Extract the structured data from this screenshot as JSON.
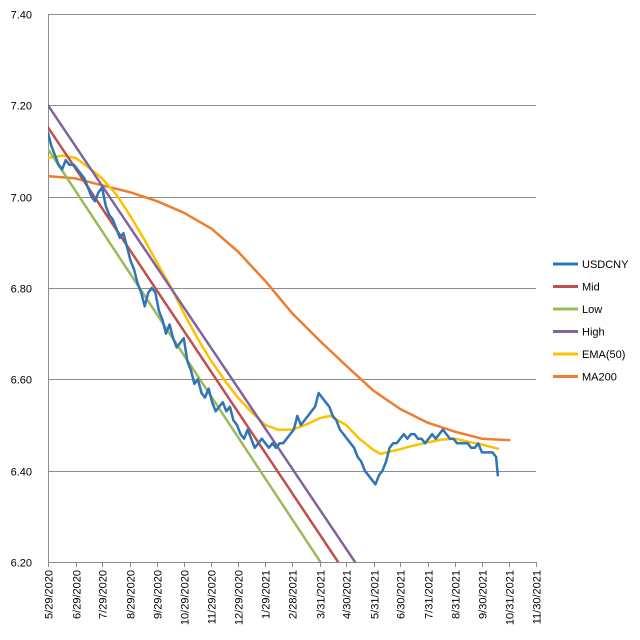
{
  "chart_data": {
    "type": "line",
    "title": "",
    "xlabel": "",
    "ylabel": "",
    "xlim": [
      "2020-05-29",
      "2021-11-30"
    ],
    "ylim": [
      6.2,
      7.4
    ],
    "grid": "horizontal",
    "legend_position": "right",
    "yticks": [
      {
        "value": 6.2,
        "label": "6.20"
      },
      {
        "value": 6.4,
        "label": "6.40"
      },
      {
        "value": 6.6,
        "label": "6.60"
      },
      {
        "value": 6.8,
        "label": "6.80"
      },
      {
        "value": 7.0,
        "label": "7.00"
      },
      {
        "value": 7.2,
        "label": "7.20"
      },
      {
        "value": 7.4,
        "label": "7.40"
      }
    ],
    "xticks": [
      {
        "date": "2020-05-29",
        "label": "5/29/2020"
      },
      {
        "date": "2020-06-29",
        "label": "6/29/2020"
      },
      {
        "date": "2020-07-29",
        "label": "7/29/2020"
      },
      {
        "date": "2020-08-29",
        "label": "8/29/2020"
      },
      {
        "date": "2020-09-29",
        "label": "9/29/2020"
      },
      {
        "date": "2020-10-29",
        "label": "10/29/2020"
      },
      {
        "date": "2020-11-29",
        "label": "11/29/2020"
      },
      {
        "date": "2020-12-29",
        "label": "12/29/2020"
      },
      {
        "date": "2021-01-29",
        "label": "1/29/2021"
      },
      {
        "date": "2021-02-28",
        "label": "2/28/2021"
      },
      {
        "date": "2021-03-31",
        "label": "3/31/2021"
      },
      {
        "date": "2021-04-30",
        "label": "4/30/2021"
      },
      {
        "date": "2021-05-31",
        "label": "5/31/2021"
      },
      {
        "date": "2021-06-30",
        "label": "6/30/2021"
      },
      {
        "date": "2021-07-31",
        "label": "7/31/2021"
      },
      {
        "date": "2021-08-31",
        "label": "8/31/2021"
      },
      {
        "date": "2021-09-30",
        "label": "9/30/2021"
      },
      {
        "date": "2021-10-31",
        "label": "10/31/2021"
      },
      {
        "date": "2021-11-30",
        "label": "11/30/2021"
      }
    ],
    "series": [
      {
        "name": "USDCNY",
        "color": "#2E75B6",
        "width": 2.5,
        "points": [
          [
            "2020-05-29",
            7.14
          ],
          [
            "2020-06-02",
            7.11
          ],
          [
            "2020-06-06",
            7.09
          ],
          [
            "2020-06-10",
            7.07
          ],
          [
            "2020-06-14",
            7.06
          ],
          [
            "2020-06-18",
            7.08
          ],
          [
            "2020-06-22",
            7.07
          ],
          [
            "2020-06-27",
            7.07
          ],
          [
            "2020-07-01",
            7.06
          ],
          [
            "2020-07-05",
            7.05
          ],
          [
            "2020-07-09",
            7.04
          ],
          [
            "2020-07-13",
            7.02
          ],
          [
            "2020-07-17",
            7.0
          ],
          [
            "2020-07-21",
            6.99
          ],
          [
            "2020-07-25",
            7.01
          ],
          [
            "2020-07-29",
            7.02
          ],
          [
            "2020-08-02",
            6.98
          ],
          [
            "2020-08-06",
            6.96
          ],
          [
            "2020-08-10",
            6.95
          ],
          [
            "2020-08-14",
            6.93
          ],
          [
            "2020-08-18",
            6.91
          ],
          [
            "2020-08-22",
            6.92
          ],
          [
            "2020-08-26",
            6.89
          ],
          [
            "2020-08-30",
            6.86
          ],
          [
            "2020-09-03",
            6.84
          ],
          [
            "2020-09-07",
            6.81
          ],
          [
            "2020-09-11",
            6.79
          ],
          [
            "2020-09-15",
            6.76
          ],
          [
            "2020-09-19",
            6.79
          ],
          [
            "2020-09-23",
            6.8
          ],
          [
            "2020-09-27",
            6.79
          ],
          [
            "2020-10-01",
            6.75
          ],
          [
            "2020-10-05",
            6.73
          ],
          [
            "2020-10-09",
            6.7
          ],
          [
            "2020-10-13",
            6.72
          ],
          [
            "2020-10-17",
            6.69
          ],
          [
            "2020-10-21",
            6.67
          ],
          [
            "2020-10-25",
            6.68
          ],
          [
            "2020-10-29",
            6.69
          ],
          [
            "2020-11-02",
            6.64
          ],
          [
            "2020-11-06",
            6.62
          ],
          [
            "2020-11-10",
            6.59
          ],
          [
            "2020-11-14",
            6.6
          ],
          [
            "2020-11-18",
            6.57
          ],
          [
            "2020-11-22",
            6.56
          ],
          [
            "2020-11-26",
            6.58
          ],
          [
            "2020-11-30",
            6.55
          ],
          [
            "2020-12-04",
            6.53
          ],
          [
            "2020-12-08",
            6.54
          ],
          [
            "2020-12-12",
            6.55
          ],
          [
            "2020-12-16",
            6.53
          ],
          [
            "2020-12-20",
            6.54
          ],
          [
            "2020-12-24",
            6.51
          ],
          [
            "2020-12-28",
            6.5
          ],
          [
            "2021-01-01",
            6.48
          ],
          [
            "2021-01-05",
            6.47
          ],
          [
            "2021-01-09",
            6.49
          ],
          [
            "2021-01-13",
            6.47
          ],
          [
            "2021-01-17",
            6.45
          ],
          [
            "2021-01-21",
            6.46
          ],
          [
            "2021-01-25",
            6.47
          ],
          [
            "2021-01-29",
            6.46
          ],
          [
            "2021-02-02",
            6.45
          ],
          [
            "2021-02-06",
            6.46
          ],
          [
            "2021-02-10",
            6.45
          ],
          [
            "2021-02-14",
            6.46
          ],
          [
            "2021-02-18",
            6.46
          ],
          [
            "2021-02-22",
            6.47
          ],
          [
            "2021-02-26",
            6.48
          ],
          [
            "2021-03-02",
            6.49
          ],
          [
            "2021-03-06",
            6.52
          ],
          [
            "2021-03-10",
            6.5
          ],
          [
            "2021-03-14",
            6.51
          ],
          [
            "2021-03-18",
            6.52
          ],
          [
            "2021-03-22",
            6.53
          ],
          [
            "2021-03-26",
            6.54
          ],
          [
            "2021-03-30",
            6.57
          ],
          [
            "2021-04-03",
            6.56
          ],
          [
            "2021-04-07",
            6.55
          ],
          [
            "2021-04-11",
            6.54
          ],
          [
            "2021-04-15",
            6.52
          ],
          [
            "2021-04-19",
            6.51
          ],
          [
            "2021-04-23",
            6.49
          ],
          [
            "2021-04-27",
            6.48
          ],
          [
            "2021-05-01",
            6.47
          ],
          [
            "2021-05-05",
            6.46
          ],
          [
            "2021-05-09",
            6.45
          ],
          [
            "2021-05-13",
            6.43
          ],
          [
            "2021-05-17",
            6.42
          ],
          [
            "2021-05-21",
            6.4
          ],
          [
            "2021-05-25",
            6.39
          ],
          [
            "2021-05-29",
            6.38
          ],
          [
            "2021-06-02",
            6.37
          ],
          [
            "2021-06-06",
            6.39
          ],
          [
            "2021-06-10",
            6.4
          ],
          [
            "2021-06-14",
            6.42
          ],
          [
            "2021-06-18",
            6.45
          ],
          [
            "2021-06-22",
            6.46
          ],
          [
            "2021-06-26",
            6.46
          ],
          [
            "2021-06-30",
            6.47
          ],
          [
            "2021-07-04",
            6.48
          ],
          [
            "2021-07-08",
            6.47
          ],
          [
            "2021-07-12",
            6.48
          ],
          [
            "2021-07-16",
            6.48
          ],
          [
            "2021-07-20",
            6.47
          ],
          [
            "2021-07-24",
            6.47
          ],
          [
            "2021-07-28",
            6.46
          ],
          [
            "2021-08-01",
            6.47
          ],
          [
            "2021-08-05",
            6.48
          ],
          [
            "2021-08-09",
            6.47
          ],
          [
            "2021-08-13",
            6.48
          ],
          [
            "2021-08-17",
            6.49
          ],
          [
            "2021-08-21",
            6.48
          ],
          [
            "2021-08-25",
            6.47
          ],
          [
            "2021-08-29",
            6.47
          ],
          [
            "2021-09-02",
            6.46
          ],
          [
            "2021-09-06",
            6.46
          ],
          [
            "2021-09-10",
            6.46
          ],
          [
            "2021-09-14",
            6.46
          ],
          [
            "2021-09-18",
            6.45
          ],
          [
            "2021-09-22",
            6.45
          ],
          [
            "2021-09-26",
            6.46
          ],
          [
            "2021-09-30",
            6.44
          ],
          [
            "2021-10-04",
            6.44
          ],
          [
            "2021-10-08",
            6.44
          ],
          [
            "2021-10-12",
            6.44
          ],
          [
            "2021-10-16",
            6.43
          ],
          [
            "2021-10-18",
            6.39
          ]
        ]
      },
      {
        "name": "Mid",
        "color": "#C0504D",
        "width": 2.5,
        "points": [
          [
            "2020-05-29",
            7.152
          ],
          [
            "2021-04-21",
            6.2
          ]
        ]
      },
      {
        "name": "Low",
        "color": "#9BBB59",
        "width": 2.5,
        "points": [
          [
            "2020-05-29",
            7.104
          ],
          [
            "2021-04-01",
            6.2
          ]
        ]
      },
      {
        "name": "High",
        "color": "#8064A2",
        "width": 2.5,
        "points": [
          [
            "2020-05-29",
            7.2
          ],
          [
            "2021-05-10",
            6.2
          ]
        ]
      },
      {
        "name": "EMA(50)",
        "color": "#FFC000",
        "width": 2.5,
        "points": [
          [
            "2020-05-29",
            7.085
          ],
          [
            "2020-06-15",
            7.09
          ],
          [
            "2020-06-29",
            7.085
          ],
          [
            "2020-07-13",
            7.065
          ],
          [
            "2020-07-29",
            7.04
          ],
          [
            "2020-08-14",
            7.005
          ],
          [
            "2020-08-29",
            6.96
          ],
          [
            "2020-09-15",
            6.905
          ],
          [
            "2020-09-29",
            6.855
          ],
          [
            "2020-10-15",
            6.8
          ],
          [
            "2020-10-29",
            6.745
          ],
          [
            "2020-11-15",
            6.685
          ],
          [
            "2020-11-29",
            6.64
          ],
          [
            "2020-12-15",
            6.595
          ],
          [
            "2020-12-29",
            6.56
          ],
          [
            "2021-01-15",
            6.525
          ],
          [
            "2021-01-29",
            6.5
          ],
          [
            "2021-02-12",
            6.49
          ],
          [
            "2021-02-28",
            6.49
          ],
          [
            "2021-03-15",
            6.5
          ],
          [
            "2021-03-31",
            6.515
          ],
          [
            "2021-04-12",
            6.52
          ],
          [
            "2021-04-30",
            6.5
          ],
          [
            "2021-05-15",
            6.47
          ],
          [
            "2021-05-31",
            6.445
          ],
          [
            "2021-06-08",
            6.437
          ],
          [
            "2021-06-15",
            6.44
          ],
          [
            "2021-06-30",
            6.447
          ],
          [
            "2021-07-15",
            6.455
          ],
          [
            "2021-07-31",
            6.462
          ],
          [
            "2021-08-15",
            6.468
          ],
          [
            "2021-08-31",
            6.47
          ],
          [
            "2021-09-15",
            6.463
          ],
          [
            "2021-09-30",
            6.457
          ],
          [
            "2021-10-18",
            6.448
          ]
        ]
      },
      {
        "name": "MA200",
        "color": "#ED7D31",
        "width": 2.5,
        "points": [
          [
            "2020-05-29",
            7.045
          ],
          [
            "2020-06-29",
            7.04
          ],
          [
            "2020-07-29",
            7.025
          ],
          [
            "2020-08-29",
            7.01
          ],
          [
            "2020-09-29",
            6.99
          ],
          [
            "2020-10-29",
            6.965
          ],
          [
            "2020-11-29",
            6.93
          ],
          [
            "2020-12-29",
            6.88
          ],
          [
            "2021-01-29",
            6.815
          ],
          [
            "2021-02-28",
            6.745
          ],
          [
            "2021-03-31",
            6.685
          ],
          [
            "2021-04-30",
            6.63
          ],
          [
            "2021-05-31",
            6.575
          ],
          [
            "2021-06-30",
            6.535
          ],
          [
            "2021-07-31",
            6.505
          ],
          [
            "2021-08-31",
            6.485
          ],
          [
            "2021-09-30",
            6.47
          ],
          [
            "2021-10-31",
            6.467
          ]
        ]
      }
    ]
  }
}
